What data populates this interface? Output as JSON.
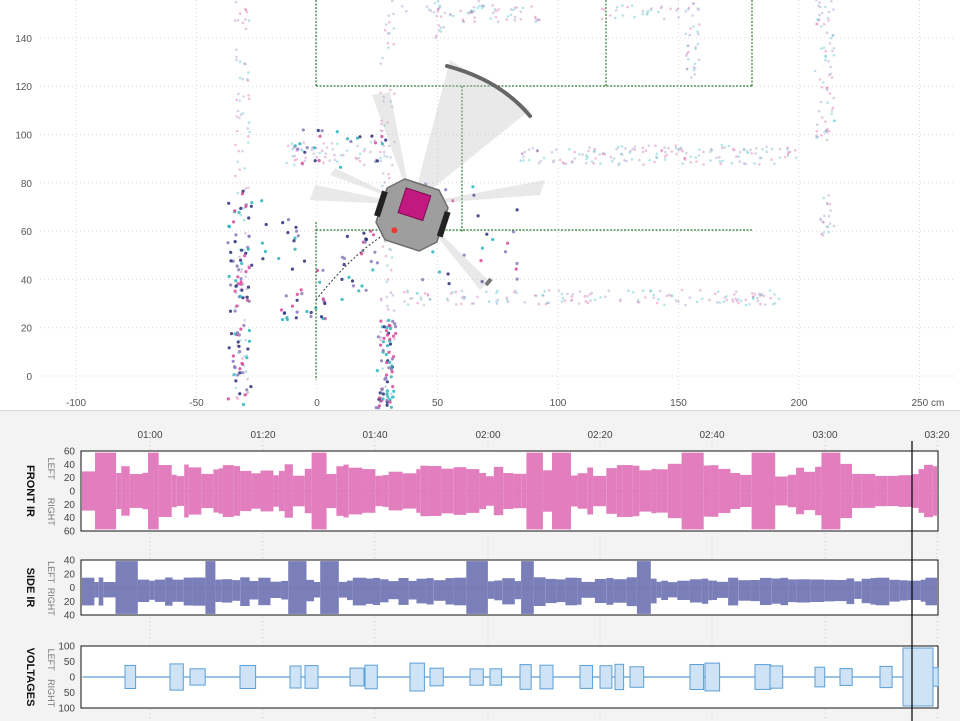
{
  "map": {
    "y_ticks": [
      "140",
      "120",
      "100",
      "80",
      "60",
      "40",
      "20",
      "0"
    ],
    "x_ticks": [
      "-100",
      "-50",
      "0",
      "50",
      "100",
      "150",
      "200",
      "250 cm"
    ],
    "colors": {
      "grid": "#d9d9d9",
      "wall": "#2e7d32",
      "robot_body": "#9e9e9e",
      "robot_top": "#c2187f",
      "robot_marker": "#e53935",
      "arc": "#666666",
      "point_pink": "#d64a9a",
      "point_cyan": "#2bb5c0",
      "point_navy": "#2a2f7a",
      "point_purple": "#8a7ab8"
    }
  },
  "timeline": {
    "time_labels": [
      "01:00",
      "01:20",
      "01:40",
      "02:00",
      "02:20",
      "02:40",
      "03:00",
      "03:20"
    ],
    "tracks": [
      {
        "title": "FRONT IR",
        "left_label": "LEFT",
        "right_label": "RIGHT",
        "ticks": [
          "60",
          "40",
          "20",
          "0",
          "20",
          "40",
          "60"
        ],
        "color": "#df73b9"
      },
      {
        "title": "SIDE IR",
        "left_label": "LEFT",
        "right_label": "RIGHT",
        "ticks": [
          "40",
          "20",
          "0",
          "20",
          "40"
        ],
        "color": "#6f74b3"
      },
      {
        "title": "VOLTAGES",
        "left_label": "LEFT",
        "right_label": "RIGHT",
        "ticks": [
          "100",
          "50",
          "0",
          "50",
          "100"
        ],
        "color": "#5b9fd6"
      }
    ]
  }
}
